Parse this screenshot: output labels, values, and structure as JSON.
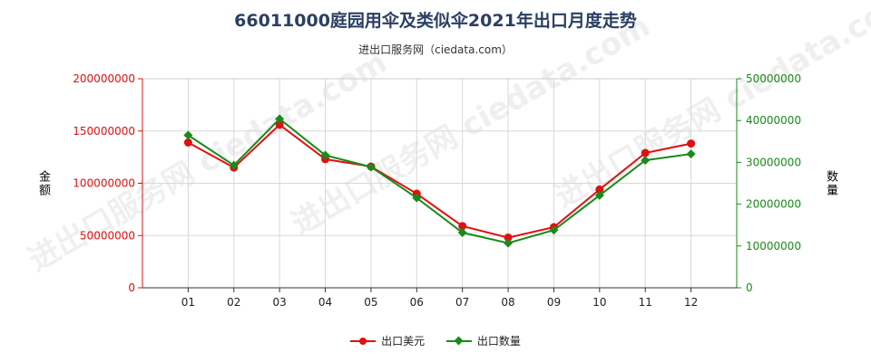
{
  "title": "66011000庭园用伞及类似伞2021年出口月度走势",
  "subtitle": "进出口服务网（ciedata.com）",
  "watermark": "进出口服务网 ciedata.com",
  "colors": {
    "series_amount": "#e01010",
    "series_qty": "#1a8a1a",
    "title": "#2b3f63",
    "grid": "#d8d8d8"
  },
  "chart_data": {
    "type": "line",
    "categories": [
      "01",
      "02",
      "03",
      "04",
      "05",
      "06",
      "07",
      "08",
      "09",
      "10",
      "11",
      "12"
    ],
    "y_left": {
      "label": "金额",
      "min": 0,
      "max": 200000000,
      "ticks": [
        0,
        50000000,
        100000000,
        150000000,
        200000000
      ],
      "tick_labels": [
        "0",
        "50000000",
        "100000000",
        "150000000",
        "200000000"
      ]
    },
    "y_right": {
      "label": "数量",
      "min": 0,
      "max": 50000000,
      "ticks": [
        0,
        10000000,
        20000000,
        30000000,
        40000000,
        50000000
      ],
      "tick_labels": [
        "0",
        "10000000",
        "20000000",
        "30000000",
        "40000000",
        "50000000"
      ]
    },
    "series": [
      {
        "name": "出口美元",
        "axis": "left",
        "marker": "circle",
        "values": [
          139000000,
          115000000,
          156000000,
          123000000,
          116000000,
          90000000,
          59000000,
          48000000,
          58000000,
          94000000,
          129000000,
          138000000
        ]
      },
      {
        "name": "出口数量",
        "axis": "right",
        "marker": "diamond",
        "values": [
          36500000,
          29300000,
          40400000,
          31700000,
          28900000,
          21500000,
          13200000,
          10700000,
          13800000,
          22100000,
          30500000,
          32000000
        ]
      }
    ],
    "grid": true,
    "legend_position": "bottom-center"
  }
}
